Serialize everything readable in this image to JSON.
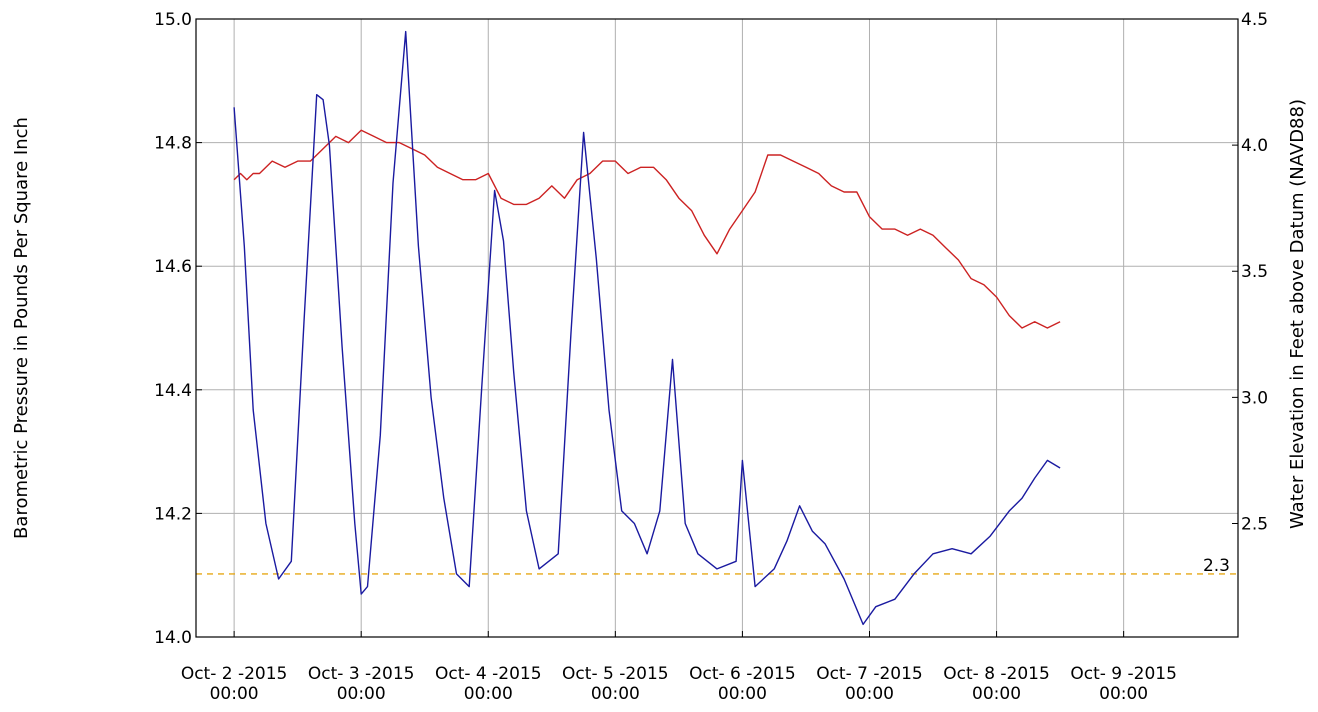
{
  "chart_data": {
    "type": "line",
    "y_left_label": "Barometric Pressure in Pounds Per Square Inch",
    "y_right_label": "Water Elevation in Feet above Datum (NAVD88)",
    "y_left_lim": [
      14.0,
      15.0
    ],
    "y_right_lim": [
      2.05,
      4.5
    ],
    "y_left_ticks": [
      "14.0",
      "14.2",
      "14.4",
      "14.6",
      "14.8",
      "15.0"
    ],
    "y_right_ticks": [
      "2.5",
      "3.0",
      "3.5",
      "4.0",
      "4.5"
    ],
    "x_ticks": [
      {
        "line1": "Oct- 2 -2015",
        "line2": "00:00"
      },
      {
        "line1": "Oct- 3 -2015",
        "line2": "00:00"
      },
      {
        "line1": "Oct- 4 -2015",
        "line2": "00:00"
      },
      {
        "line1": "Oct- 5 -2015",
        "line2": "00:00"
      },
      {
        "line1": "Oct- 6 -2015",
        "line2": "00:00"
      },
      {
        "line1": "Oct- 7 -2015",
        "line2": "00:00"
      },
      {
        "line1": "Oct- 8 -2015",
        "line2": "00:00"
      },
      {
        "line1": "Oct- 9 -2015",
        "line2": "00:00"
      }
    ],
    "x_range_days": [
      -0.3,
      7.9
    ],
    "reference_line": {
      "value": 2.3,
      "label": "2.3",
      "axis": "right",
      "color": "#e6a817",
      "style": "dashed"
    },
    "grid": true,
    "series": [
      {
        "axis": "left",
        "color": "#cc2222",
        "x": [
          0.0,
          0.05,
          0.1,
          0.15,
          0.2,
          0.3,
          0.4,
          0.5,
          0.6,
          0.7,
          0.8,
          0.9,
          1.0,
          1.1,
          1.2,
          1.3,
          1.4,
          1.5,
          1.6,
          1.7,
          1.8,
          1.9,
          2.0,
          2.1,
          2.2,
          2.3,
          2.4,
          2.5,
          2.6,
          2.7,
          2.8,
          2.9,
          3.0,
          3.1,
          3.2,
          3.3,
          3.4,
          3.5,
          3.6,
          3.7,
          3.8,
          3.9,
          4.0,
          4.1,
          4.2,
          4.3,
          4.4,
          4.5,
          4.6,
          4.65,
          4.7,
          4.8,
          4.9,
          5.0,
          5.1,
          5.2,
          5.3,
          5.4,
          5.5,
          5.6,
          5.7,
          5.8,
          5.9,
          6.0,
          6.1,
          6.2,
          6.3,
          6.4,
          6.5
        ],
        "values": [
          14.74,
          14.75,
          14.74,
          14.75,
          14.75,
          14.77,
          14.76,
          14.77,
          14.77,
          14.79,
          14.81,
          14.8,
          14.82,
          14.81,
          14.8,
          14.8,
          14.79,
          14.78,
          14.76,
          14.75,
          14.74,
          14.74,
          14.75,
          14.71,
          14.7,
          14.7,
          14.71,
          14.73,
          14.71,
          14.74,
          14.75,
          14.77,
          14.77,
          14.75,
          14.76,
          14.76,
          14.74,
          14.71,
          14.69,
          14.65,
          14.62,
          14.66,
          14.69,
          14.72,
          14.78,
          14.78,
          14.77,
          14.76,
          14.75,
          14.74,
          14.73,
          14.72,
          14.72,
          14.68,
          14.66,
          14.66,
          14.65,
          14.66,
          14.65,
          14.63,
          14.61,
          14.58,
          14.57,
          14.55,
          14.52,
          14.5,
          14.51,
          14.5,
          14.51
        ]
      },
      {
        "axis": "right",
        "color": "#1a1aa0",
        "x": [
          0.0,
          0.08,
          0.15,
          0.25,
          0.35,
          0.45,
          0.55,
          0.65,
          0.7,
          0.75,
          0.85,
          0.95,
          1.0,
          1.05,
          1.15,
          1.25,
          1.35,
          1.45,
          1.55,
          1.65,
          1.75,
          1.85,
          1.95,
          2.05,
          2.12,
          2.2,
          2.3,
          2.4,
          2.55,
          2.65,
          2.75,
          2.85,
          2.95,
          3.05,
          3.15,
          3.25,
          3.35,
          3.45,
          3.55,
          3.65,
          3.8,
          3.95,
          4.0,
          4.1,
          4.25,
          4.35,
          4.45,
          4.55,
          4.65,
          4.8,
          4.95,
          5.05,
          5.2,
          5.35,
          5.5,
          5.65,
          5.8,
          5.95,
          6.1,
          6.2,
          6.3,
          6.4,
          6.5
        ],
        "values": [
          4.15,
          3.6,
          2.95,
          2.5,
          2.28,
          2.35,
          3.3,
          4.2,
          4.18,
          4.0,
          3.2,
          2.5,
          2.22,
          2.25,
          2.85,
          3.85,
          4.45,
          3.6,
          3.0,
          2.6,
          2.3,
          2.25,
          3.05,
          3.82,
          3.62,
          3.1,
          2.55,
          2.32,
          2.38,
          3.25,
          4.05,
          3.55,
          2.95,
          2.55,
          2.5,
          2.38,
          2.55,
          3.15,
          2.5,
          2.38,
          2.32,
          2.35,
          2.75,
          2.25,
          2.32,
          2.43,
          2.57,
          2.47,
          2.42,
          2.28,
          2.1,
          2.17,
          2.2,
          2.3,
          2.38,
          2.4,
          2.38,
          2.45,
          2.55,
          2.6,
          2.68,
          2.75,
          2.72
        ]
      }
    ]
  }
}
